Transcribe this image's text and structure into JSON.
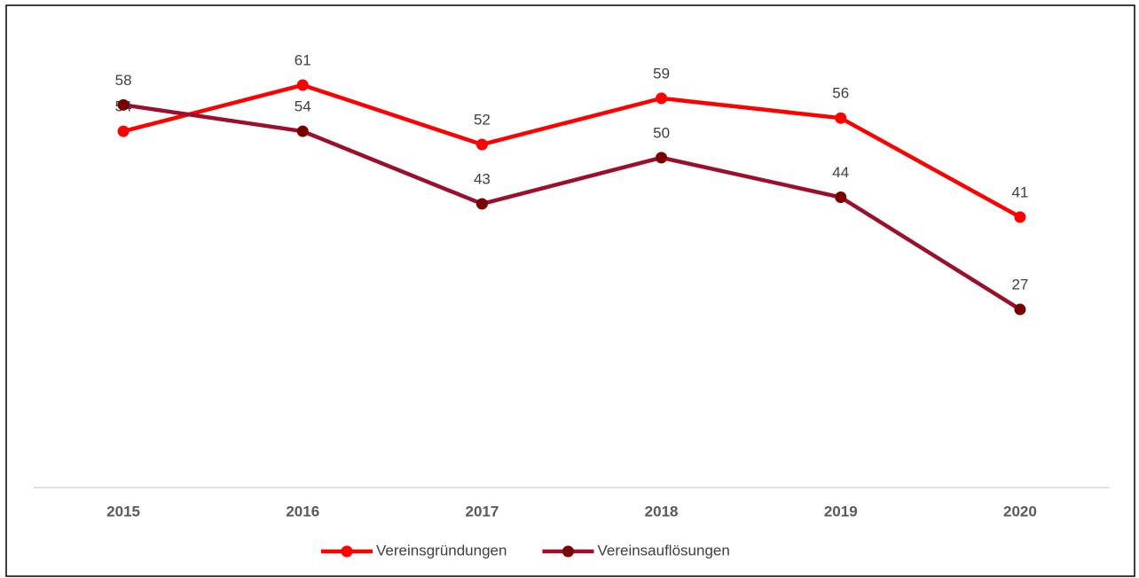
{
  "chart_data": {
    "type": "line",
    "categories": [
      "2015",
      "2016",
      "2017",
      "2018",
      "2019",
      "2020"
    ],
    "series": [
      {
        "name": "Vereinsgründungen",
        "color": "#ff0000",
        "values": [
          54,
          61,
          52,
          59,
          56,
          41
        ]
      },
      {
        "name": "Vereinsauflösungen",
        "color": "#9b0f2b",
        "marker_color": "#7a0000",
        "values": [
          58,
          54,
          43,
          50,
          44,
          27
        ]
      }
    ],
    "ylim": [
      0,
      70
    ],
    "legend": "bottom"
  }
}
